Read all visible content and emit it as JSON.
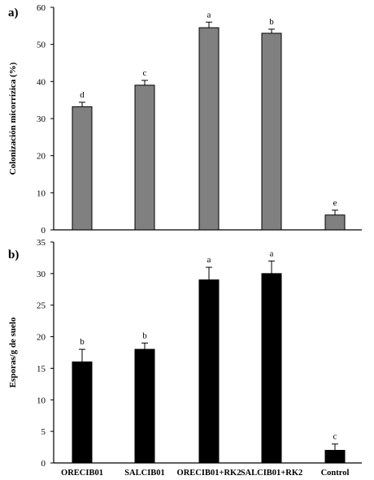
{
  "chart_data": [
    {
      "type": "bar",
      "panel_label": "a)",
      "ylabel": "Colonización micorrízica (%)",
      "ylim": [
        0,
        60
      ],
      "yticks": [
        "0",
        "10",
        "20",
        "30",
        "40",
        "50",
        "60"
      ],
      "categories": [
        "ORECIB01",
        "SALCIB01",
        "ORECIB01+RK2",
        "SALCIB01+RK2",
        "Control"
      ],
      "values": [
        33.2,
        39.0,
        54.5,
        53.0,
        4.0
      ],
      "errors": [
        1.2,
        1.3,
        1.5,
        1.1,
        1.3
      ],
      "significance": [
        "d",
        "c",
        "a",
        "b",
        "e"
      ],
      "bar_color": "#808080",
      "show_category_labels": false
    },
    {
      "type": "bar",
      "panel_label": "b)",
      "ylabel": "Esporas/g de suelo",
      "ylim": [
        0,
        35
      ],
      "yticks": [
        "0",
        "5",
        "10",
        "15",
        "20",
        "25",
        "30",
        "35"
      ],
      "categories": [
        "ORECIB01",
        "SALCIB01",
        "ORECIB01+RK2",
        "SALCIB01+RK2",
        "Control"
      ],
      "values": [
        16,
        18,
        29,
        30,
        2
      ],
      "errors": [
        2,
        1,
        2,
        2,
        1
      ],
      "significance": [
        "b",
        "b",
        "a",
        "a",
        "c"
      ],
      "bar_color": "#000000",
      "show_category_labels": true
    }
  ]
}
